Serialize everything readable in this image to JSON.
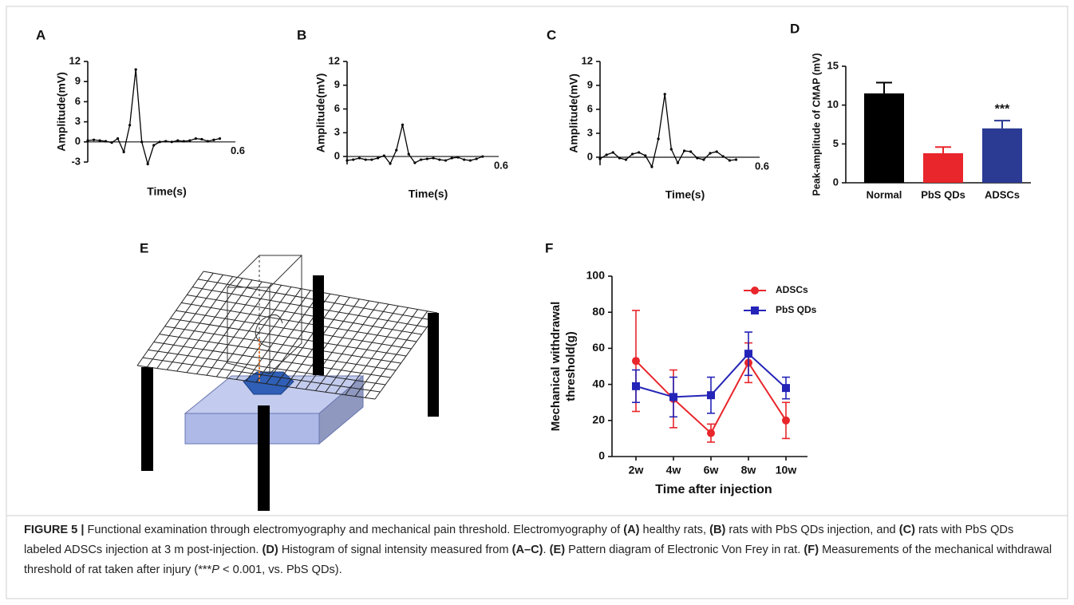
{
  "panel_labels": [
    "A",
    "B",
    "C",
    "D",
    "E",
    "F"
  ],
  "chart_data": [
    {
      "type": "line",
      "x_label": "Time(s)",
      "y_label": "Amplitude(mV)",
      "color": "#000000",
      "x": [
        0,
        0.024,
        0.048,
        0.072,
        0.096,
        0.12,
        0.144,
        0.168,
        0.192,
        0.216,
        0.24,
        0.264,
        0.288,
        0.312,
        0.336,
        0.36,
        0.384,
        0.408,
        0.432,
        0.456,
        0.48,
        0.504,
        0.528
      ],
      "values": [
        0.2,
        0.3,
        0.2,
        0.1,
        -0.1,
        0.5,
        -1.5,
        2.5,
        10.8,
        0,
        -3.3,
        -0.5,
        0,
        0.1,
        0,
        0.2,
        0.1,
        0.2,
        0.5,
        0.4,
        0.1,
        0.3,
        0.5
      ],
      "xlim": [
        0,
        0.6
      ],
      "xticks": [
        0.6
      ],
      "ylim": [
        -3,
        12
      ],
      "yticks": [
        -3,
        0,
        3,
        6,
        9,
        12
      ]
    },
    {
      "type": "line",
      "x_label": "Time(s)",
      "y_label": "Amplitude(mV)",
      "color": "#000000",
      "x": [
        0,
        0.024,
        0.048,
        0.072,
        0.096,
        0.12,
        0.144,
        0.168,
        0.192,
        0.216,
        0.24,
        0.264,
        0.288,
        0.312,
        0.336,
        0.36,
        0.384,
        0.408,
        0.432,
        0.456,
        0.48,
        0.504,
        0.528
      ],
      "values": [
        -0.5,
        -0.4,
        -0.2,
        -0.4,
        -0.4,
        -0.2,
        0.1,
        -0.9,
        0.8,
        4.0,
        0.3,
        -0.8,
        -0.4,
        -0.3,
        -0.2,
        -0.4,
        -0.5,
        -0.2,
        -0.1,
        -0.4,
        -0.5,
        -0.3,
        0
      ],
      "xlim": [
        0,
        0.6
      ],
      "xticks": [
        0.6
      ],
      "ylim": [
        -1,
        12
      ],
      "yticks": [
        0,
        3,
        6,
        9,
        12
      ]
    },
    {
      "type": "line",
      "x_label": "Time(s)",
      "y_label": "Amplitude(mV)",
      "color": "#000000",
      "x": [
        0,
        0.024,
        0.048,
        0.072,
        0.096,
        0.12,
        0.144,
        0.168,
        0.192,
        0.216,
        0.24,
        0.264,
        0.288,
        0.312,
        0.336,
        0.36,
        0.384,
        0.408,
        0.432,
        0.456,
        0.48,
        0.504
      ],
      "values": [
        -0.2,
        0.3,
        0.6,
        -0.1,
        -0.3,
        0.4,
        0.6,
        0.2,
        -1.2,
        2.3,
        7.9,
        1.0,
        -0.7,
        0.8,
        0.7,
        -0.1,
        -0.3,
        0.5,
        0.7,
        0.1,
        -0.4,
        -0.3
      ],
      "xlim": [
        0,
        0.6
      ],
      "xticks": [
        0.6
      ],
      "ylim": [
        -1,
        12
      ],
      "yticks": [
        0,
        3,
        6,
        9,
        12
      ]
    },
    {
      "type": "bar",
      "y_label": "Peak-amplitude of CMAP (mV)",
      "categories": [
        "Normal",
        "PbS QDs",
        "ADSCs"
      ],
      "values": [
        11.5,
        3.8,
        7.0
      ],
      "errors": [
        1.4,
        0.8,
        1.0
      ],
      "colors": [
        "#000000",
        "#e8262b",
        "#2b3a93"
      ],
      "annotation": "***",
      "ylim": [
        0,
        15
      ],
      "yticks": [
        0,
        5,
        10,
        15
      ]
    },
    {
      "type": "line",
      "x_label": "Time after injection",
      "y_label": [
        "Mechanical withdrawal",
        "threshold(g)"
      ],
      "categories": [
        "2w",
        "4w",
        "6w",
        "8w",
        "10w"
      ],
      "series": [
        {
          "name": "ADSCs",
          "color": "#e8262b",
          "marker": "circle",
          "values": [
            53,
            32,
            13,
            52,
            20
          ],
          "errors": [
            28,
            16,
            5,
            11,
            10
          ]
        },
        {
          "name": "PbS QDs",
          "color": "#2424b8",
          "marker": "square",
          "values": [
            39,
            33,
            34,
            57,
            38
          ],
          "errors": [
            9,
            11,
            10,
            12,
            6
          ]
        }
      ],
      "legend": "upper right",
      "ylim": [
        0,
        100
      ],
      "yticks": [
        0,
        20,
        40,
        60,
        80,
        100
      ]
    }
  ],
  "caption": [
    {
      "text": "FIGURE 5 |",
      "style": "bold"
    },
    {
      "text": " Functional examination through electromyography and mechanical pain threshold. Electromyography of ",
      "style": "normal"
    },
    {
      "text": "(A)",
      "style": "bold"
    },
    {
      "text": " healthy rats, ",
      "style": "normal"
    },
    {
      "text": "(B)",
      "style": "bold"
    },
    {
      "text": " rats with PbS QDs injection, and ",
      "style": "normal"
    },
    {
      "text": "(C)",
      "style": "bold"
    },
    {
      "text": " rats with PbS QDs labeled ADSCs injection at 3 m post-injection. ",
      "style": "normal"
    },
    {
      "text": "(D)",
      "style": "bold"
    },
    {
      "text": " Histogram of signal intensity measured from ",
      "style": "normal"
    },
    {
      "text": "(A–C)",
      "style": "bold"
    },
    {
      "text": ". ",
      "style": "normal"
    },
    {
      "text": "(E)",
      "style": "bold"
    },
    {
      "text": " Pattern diagram of Electronic Von Frey in rat. ",
      "style": "normal"
    },
    {
      "text": "(F)",
      "style": "bold"
    },
    {
      "text": " Measurements of the mechanical withdrawal threshold of rat taken after injury (***",
      "style": "normal"
    },
    {
      "text": "P",
      "style": "italic"
    },
    {
      "text": " < 0.001, vs. PbS QDs).",
      "style": "normal"
    }
  ]
}
